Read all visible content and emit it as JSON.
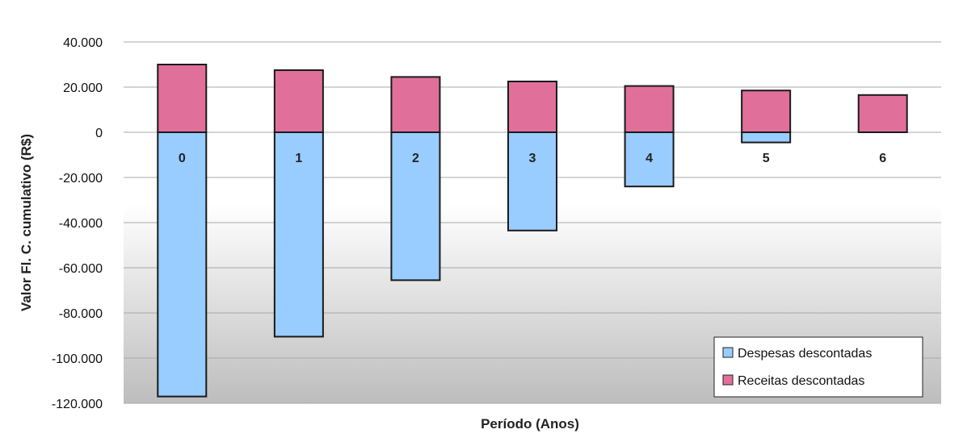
{
  "chart_data": {
    "type": "bar",
    "stacked": true,
    "categories": [
      "0",
      "1",
      "2",
      "3",
      "4",
      "5",
      "6"
    ],
    "series": [
      {
        "name": "Despesas descontadas",
        "color": "#99ccff",
        "values": [
          -117000,
          -90500,
          -65500,
          -43500,
          -24000,
          -4500,
          0
        ]
      },
      {
        "name": "Receitas descontadas",
        "color": "#e0709a",
        "values": [
          30000,
          27500,
          24500,
          22500,
          20500,
          18500,
          16500
        ]
      }
    ],
    "xlabel": "Período (Anos)",
    "ylabel": "Valor Fl. C. cumulativo (R$)",
    "yticks": [
      "40.000",
      "20.000",
      "0",
      "-20.000",
      "-40.000",
      "-60.000",
      "-80.000",
      "-100.000",
      "-120.000"
    ],
    "ylim": [
      -120000,
      40000
    ],
    "grid": true,
    "legend_position": "bottom-right",
    "background": "gradient white to gray"
  }
}
